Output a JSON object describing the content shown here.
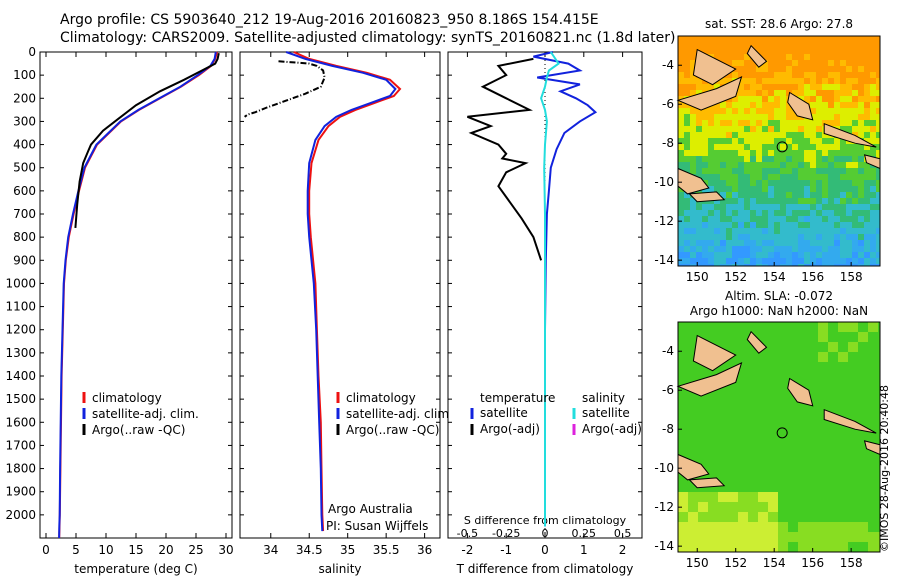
{
  "header": {
    "line1": "Argo profile: CS 5903640_212 19-Aug-2016 20160823_950 8.186S 154.415E",
    "line2": "Climatology: CARS2009. Satellite-adjusted climatology: synTS_20160821.nc (1.8d later)"
  },
  "credit": "©IMOS 28-Aug-2016 20:40:48",
  "colors": {
    "climatology": "#ee1111",
    "satellite": "#1122dd",
    "argo": "#000000",
    "sat_salinity": "#22dddd",
    "argo_salinity": "#dd22dd",
    "land": "#f0c090"
  },
  "chart_data": [
    {
      "type": "line",
      "id": "temperature",
      "xlabel": "temperature (deg C)",
      "ylabel": "",
      "xlim": [
        -1,
        31
      ],
      "ylim": [
        0,
        2100
      ],
      "xticks": [
        0,
        5,
        10,
        15,
        20,
        25,
        30
      ],
      "yticks": [
        0,
        100,
        200,
        300,
        400,
        500,
        600,
        700,
        800,
        900,
        1000,
        1100,
        1200,
        1300,
        1400,
        1500,
        1600,
        1700,
        1800,
        1900,
        2000
      ],
      "legend": "center-bottom",
      "series": [
        {
          "name": "climatology",
          "color": "#ee1111",
          "x": [
            28.5,
            28.2,
            27.5,
            25.5,
            22.5,
            19,
            15.5,
            12.5,
            10.5,
            8.5,
            7.5,
            6.5,
            5.5,
            4.6,
            3.8,
            3.3,
            3,
            2.8,
            2.6,
            2.5,
            2.4,
            2.3,
            2.25,
            2.2
          ],
          "y": [
            0,
            30,
            60,
            100,
            150,
            200,
            250,
            300,
            350,
            400,
            450,
            500,
            600,
            700,
            800,
            900,
            1000,
            1200,
            1400,
            1600,
            1800,
            2000,
            2050,
            2100
          ]
        },
        {
          "name": "satellite-adj. clim.",
          "color": "#1122dd",
          "x": [
            28.3,
            28.1,
            27.4,
            25.3,
            22.4,
            18.9,
            15.4,
            12.4,
            10.4,
            8.4,
            7.4,
            6.4,
            5.4,
            4.5,
            3.7,
            3.25,
            2.95,
            2.75,
            2.55,
            2.45,
            2.35,
            2.28,
            2.22,
            2.18
          ],
          "y": [
            0,
            30,
            60,
            100,
            150,
            200,
            250,
            300,
            350,
            400,
            450,
            500,
            600,
            700,
            800,
            900,
            1000,
            1200,
            1400,
            1600,
            1800,
            2000,
            2050,
            2100
          ]
        },
        {
          "name": "Argo(..raw -QC)",
          "color": "#000000",
          "x": [
            28.8,
            28.6,
            28.2,
            26,
            23,
            19,
            15,
            12,
            9.5,
            7.5,
            7,
            6.2,
            5.6,
            5.2,
            4.9
          ],
          "y": [
            5,
            30,
            50,
            80,
            120,
            170,
            230,
            290,
            340,
            400,
            430,
            480,
            560,
            660,
            760
          ]
        }
      ]
    },
    {
      "type": "line",
      "id": "salinity",
      "xlabel": "salinity",
      "ylabel": "",
      "xlim": [
        33.6,
        36.2
      ],
      "ylim": [
        0,
        2100
      ],
      "xticks": [
        34,
        34.5,
        35,
        35.5,
        36
      ],
      "legend": "center-right",
      "annotation": "Argo Australia",
      "annotation2": "PI: Susan Wijffels",
      "series": [
        {
          "name": "climatology",
          "color": "#ee1111",
          "x": [
            34.3,
            34.5,
            34.85,
            35.25,
            35.55,
            35.68,
            35.6,
            35.35,
            35.1,
            34.9,
            34.75,
            34.62,
            34.53,
            34.5,
            34.5,
            34.52,
            34.55,
            34.58,
            34.6,
            34.62,
            34.65,
            34.66,
            34.67,
            34.68
          ],
          "y": [
            0,
            30,
            60,
            90,
            120,
            160,
            190,
            220,
            250,
            280,
            320,
            380,
            480,
            600,
            700,
            800,
            900,
            1000,
            1200,
            1400,
            1600,
            1800,
            2000,
            2070
          ]
        },
        {
          "name": "satellite-adj. clim.",
          "color": "#1122dd",
          "x": [
            34.2,
            34.45,
            34.8,
            35.2,
            35.5,
            35.62,
            35.55,
            35.3,
            35.05,
            34.85,
            34.7,
            34.58,
            34.5,
            34.48,
            34.48,
            34.5,
            34.53,
            34.56,
            34.59,
            34.61,
            34.63,
            34.65,
            34.66,
            34.67
          ],
          "y": [
            0,
            30,
            60,
            90,
            120,
            160,
            190,
            220,
            250,
            280,
            320,
            380,
            480,
            600,
            700,
            800,
            900,
            1000,
            1200,
            1400,
            1600,
            1800,
            2000,
            2070
          ]
        },
        {
          "name": "Argo(..raw -QC)",
          "color": "#000000",
          "dashed": true,
          "x": [
            34.1,
            34.3,
            34.5,
            34.6,
            34.68,
            34.7,
            34.65,
            34.45,
            34.2,
            33.95,
            33.8,
            33.7,
            33.66
          ],
          "y": [
            40,
            45,
            50,
            60,
            80,
            110,
            150,
            180,
            210,
            240,
            260,
            270,
            280
          ]
        }
      ]
    },
    {
      "type": "line",
      "id": "difference",
      "xlabel": "T difference from climatology",
      "ylabel": "",
      "title2": "S difference from climatology",
      "xlim": [
        -2.5,
        2.5
      ],
      "ylim": [
        0,
        2100
      ],
      "xticks": [
        -2,
        -1,
        0,
        1,
        2
      ],
      "xticks_top": [
        -0.5,
        -0.25,
        0,
        0.25,
        0.5
      ],
      "legend": "center",
      "legend_headers": [
        "temperature",
        "salinity"
      ],
      "series": [
        {
          "name": "satellite",
          "group": "temperature",
          "color": "#1122dd",
          "x": [
            0.2,
            -0.3,
            0.6,
            0.9,
            -0.2,
            0.9,
            0.4,
            0.8,
            1.1,
            1.3,
            0.9,
            0.5,
            0.3,
            0.15,
            0.1,
            0.05,
            0.02,
            0,
            0,
            0
          ],
          "y": [
            0,
            20,
            50,
            80,
            110,
            140,
            170,
            200,
            230,
            260,
            300,
            350,
            420,
            500,
            600,
            700,
            900,
            1200,
            1600,
            2050
          ]
        },
        {
          "name": "Argo(-adj)",
          "group": "temperature",
          "color": "#000000",
          "x": [
            -0.3,
            -1.2,
            -1.0,
            -1.6,
            -1.0,
            -0.4,
            -2.0,
            -1.4,
            -1.9,
            -1.2,
            -1.0,
            -1.1,
            -0.5,
            -1.0,
            -1.2,
            -0.9,
            -0.6,
            -0.3,
            -0.1
          ],
          "y": [
            30,
            60,
            100,
            150,
            200,
            250,
            280,
            320,
            350,
            400,
            440,
            460,
            480,
            520,
            580,
            650,
            720,
            800,
            900
          ]
        },
        {
          "name": "satellite",
          "group": "salinity",
          "color": "#22dddd",
          "x": [
            0.15,
            0.35,
            0.1,
            0.05,
            0.0,
            -0.1,
            0.0,
            0.05,
            0.0,
            -0.02,
            0.0,
            0.0,
            0.0,
            0.0
          ],
          "y": [
            0,
            50,
            80,
            110,
            150,
            200,
            250,
            300,
            400,
            500,
            700,
            1000,
            1500,
            2050
          ]
        },
        {
          "name": "Argo(-adj)",
          "group": "salinity",
          "color": "#dd22dd",
          "x": [],
          "y": []
        }
      ]
    },
    {
      "type": "heatmap",
      "id": "sst_map",
      "title": "sat. SST: 28.6 Argo: 27.8",
      "xlim": [
        149,
        159.5
      ],
      "ylim": [
        -14.3,
        -2.5
      ],
      "xticks": [
        150,
        152,
        154,
        156,
        158
      ],
      "yticks": [
        -4,
        -6,
        -8,
        -10,
        -12,
        -14
      ],
      "marker": {
        "lon": 154.415,
        "lat": -8.186
      }
    },
    {
      "type": "heatmap",
      "id": "sla_map",
      "title": "Altim. SLA: -0.072",
      "subtitle": "Argo h1000: NaN h2000: NaN",
      "xlim": [
        149,
        159.5
      ],
      "ylim": [
        -14.3,
        -2.5
      ],
      "xticks": [
        150,
        152,
        154,
        156,
        158
      ],
      "yticks": [
        -4,
        -6,
        -8,
        -10,
        -12,
        -14
      ],
      "marker": {
        "lon": 154.415,
        "lat": -8.186
      }
    }
  ]
}
